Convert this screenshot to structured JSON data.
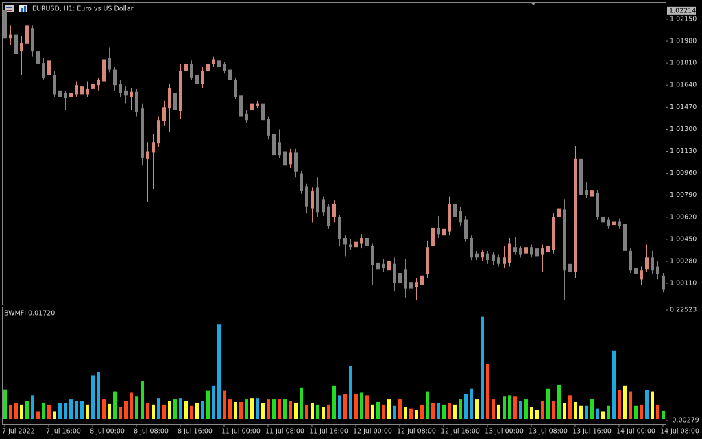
{
  "chart_data": [
    {
      "type": "candlestick",
      "title": "EURUSD, H1:  Euro vs US Dollar",
      "categories": [
        "7 Jul 2022",
        null,
        null,
        null,
        null,
        null,
        null,
        null,
        "7 Jul 16:00",
        null,
        null,
        null,
        null,
        null,
        null,
        null,
        "8 Jul 00:00",
        null,
        null,
        null,
        null,
        null,
        null,
        null,
        "8 Jul 08:00",
        null,
        null,
        null,
        null,
        null,
        null,
        null,
        "8 Jul 16:00",
        null,
        null,
        null,
        null,
        null,
        null,
        null,
        "11 Jul 00:00",
        null,
        null,
        null,
        null,
        null,
        null,
        null,
        "11 Jul 08:00",
        null,
        null,
        null,
        null,
        null,
        null,
        null,
        "11 Jul 16:00",
        null,
        null,
        null,
        null,
        null,
        null,
        null,
        "12 Jul 00:00",
        null,
        null,
        null,
        null,
        null,
        null,
        null,
        "12 Jul 08:00",
        null,
        null,
        null,
        null,
        null,
        null,
        null,
        "12 Jul 16:00",
        null,
        null,
        null,
        null,
        null,
        null,
        null,
        "13 Jul 00:00",
        null,
        null,
        null,
        null,
        null,
        null,
        null,
        "13 Jul 08:00",
        null,
        null,
        null,
        null,
        null,
        null,
        null,
        "13 Jul 16:00",
        null,
        null,
        null,
        null,
        null,
        null,
        null,
        "14 Jul 00:00",
        null,
        null,
        null,
        null,
        null,
        null,
        null,
        "14 Jul 08:00"
      ],
      "open": [
        1.0222,
        1.02,
        1.0203,
        1.019,
        1.0196,
        1.0208,
        1.019,
        1.0181,
        1.0172,
        1.0172,
        1.016,
        1.0158,
        1.0155,
        1.0157,
        1.0157,
        1.0157,
        1.0161,
        1.0164,
        1.0167,
        1.0185,
        1.0176,
        1.0165,
        1.016,
        1.0155,
        1.0159,
        1.0146,
        1.0107,
        1.0112,
        1.0119,
        1.0136,
        1.0146,
        1.0158,
        1.0144,
        1.0175,
        1.018,
        1.0172,
        1.0165,
        1.0175,
        1.018,
        1.0183,
        1.018,
        1.0176,
        1.0168,
        1.0156,
        1.0142,
        1.0145,
        1.0148,
        1.015,
        1.0138,
        1.0126,
        1.012,
        1.0113,
        1.0103,
        1.0112,
        1.0096,
        1.0086,
        1.0069,
        1.0085,
        1.0076,
        1.007,
        1.0062,
        1.0062,
        1.0046,
        1.0041,
        1.0039,
        1.0042,
        1.0046,
        1.004,
        1.0027,
        1.0026,
        1.0021,
        1.0026,
        1.0019,
        1.0022,
        1.0012,
        1.0008,
        1.001,
        1.0018,
        1.004,
        1.0054,
        1.0048,
        1.0051,
        1.0072,
        1.0067,
        1.006,
        1.0046,
        1.0034,
        1.0031,
        1.0034,
        1.0033,
        1.0031,
        1.0026,
        1.0027,
        1.0039,
        1.0038,
        1.0034,
        1.0039,
        1.0038,
        1.0033,
        1.0035,
        1.0037,
        1.0062,
        1.0068,
        1.0026,
        1.002,
        1.0107,
        1.0083,
        1.0078,
        1.0081,
        1.0062,
        1.006,
        1.0056,
        1.0059,
        1.0057,
        1.0036,
        1.0023,
        1.0014,
        1.0022,
        1.0031,
        1.0024,
        1.0017
      ],
      "high": [
        1.0226,
        1.021,
        1.0212,
        1.0202,
        1.0215,
        1.021,
        1.0192,
        1.0185,
        1.0186,
        1.0175,
        1.0165,
        1.016,
        1.0163,
        1.0167,
        1.0166,
        1.0167,
        1.0168,
        1.017,
        1.0188,
        1.0193,
        1.0178,
        1.0168,
        1.0163,
        1.0162,
        1.0161,
        1.015,
        1.012,
        1.0126,
        1.014,
        1.0152,
        1.0165,
        1.016,
        1.018,
        1.0195,
        1.0183,
        1.0175,
        1.0178,
        1.0182,
        1.0186,
        1.0185,
        1.0182,
        1.0178,
        1.017,
        1.0158,
        1.0145,
        1.0152,
        1.0152,
        1.0152,
        1.014,
        1.0128,
        1.013,
        1.0115,
        1.0115,
        1.0115,
        1.0098,
        1.0088,
        1.0085,
        1.0093,
        1.0078,
        1.0072,
        1.0075,
        1.0064,
        1.0048,
        1.0045,
        1.0046,
        1.0049,
        1.0048,
        1.0042,
        1.0029,
        1.003,
        1.0031,
        1.0031,
        1.0035,
        1.003,
        1.0018,
        1.0015,
        1.002,
        1.0044,
        1.0062,
        1.0063,
        1.0055,
        1.0078,
        1.0075,
        1.007,
        1.0063,
        1.0048,
        1.0036,
        1.0037,
        1.0036,
        1.0035,
        1.0033,
        1.004,
        1.0046,
        1.0047,
        1.004,
        1.0048,
        1.0041,
        1.0045,
        1.0041,
        1.0046,
        1.0065,
        1.0072,
        1.0076,
        1.0028,
        1.0117,
        1.0109,
        1.0089,
        1.0085,
        1.0083,
        1.0064,
        1.0062,
        1.0061,
        1.0061,
        1.0059,
        1.0038,
        1.0025,
        1.0024,
        1.0041,
        1.0036,
        1.0028,
        1.0019
      ],
      "low": [
        1.0196,
        1.0195,
        1.0185,
        1.0172,
        1.0194,
        1.0186,
        1.0175,
        1.0168,
        1.017,
        1.0155,
        1.015,
        1.0145,
        1.0152,
        1.0155,
        1.0155,
        1.0155,
        1.0158,
        1.016,
        1.0165,
        1.0174,
        1.016,
        1.0155,
        1.015,
        1.0145,
        1.014,
        1.0102,
        1.0074,
        1.0084,
        1.0116,
        1.0133,
        1.0128,
        1.014,
        1.0138,
        1.0173,
        1.0168,
        1.0163,
        1.0162,
        1.0173,
        1.0178,
        1.0176,
        1.0173,
        1.0166,
        1.0153,
        1.0138,
        1.0135,
        1.0143,
        1.0146,
        1.0135,
        1.0122,
        1.0108,
        1.0108,
        1.01,
        1.01,
        1.0093,
        1.008,
        1.0065,
        1.0058,
        1.0062,
        1.0063,
        1.0053,
        1.0058,
        1.004,
        1.0032,
        1.0037,
        1.0037,
        1.0038,
        1.0037,
        1.001,
        1.0005,
        1.002,
        1.0015,
        1.0005,
        1.0008,
        1.0,
        1.0,
        0.9998,
        1.0006,
        1.0015,
        1.0036,
        1.0046,
        1.0045,
        1.0048,
        1.006,
        1.0055,
        1.0043,
        1.0029,
        1.0029,
        1.0028,
        1.0026,
        1.0025,
        1.0024,
        1.0023,
        1.0024,
        1.0033,
        1.0031,
        1.0031,
        1.0031,
        1.0009,
        1.002,
        1.0032,
        1.0034,
        1.0056,
        0.9998,
        1.0005,
        1.0015,
        1.0076,
        1.0077,
        1.0076,
        1.006,
        1.0056,
        1.0053,
        1.0054,
        1.0053,
        1.0034,
        1.0019,
        1.001,
        1.001,
        1.002,
        1.0018,
        1.0014,
        1.0004
      ],
      "close": [
        1.02,
        1.0203,
        1.0188,
        1.0197,
        1.021,
        1.019,
        1.018,
        1.017,
        1.0183,
        1.0157,
        1.0155,
        1.0154,
        1.0158,
        1.0164,
        1.0163,
        1.0161,
        1.0165,
        1.0168,
        1.0184,
        1.0176,
        1.0164,
        1.0158,
        1.0156,
        1.0159,
        1.0143,
        1.0108,
        1.0113,
        1.012,
        1.0137,
        1.0147,
        1.0162,
        1.0145,
        1.0175,
        1.018,
        1.017,
        1.0165,
        1.0175,
        1.018,
        1.0184,
        1.0178,
        1.0175,
        1.0168,
        1.0155,
        1.014,
        1.0137,
        1.015,
        1.015,
        1.0137,
        1.0125,
        1.011,
        1.011,
        1.0102,
        1.0112,
        1.0097,
        1.0082,
        1.007,
        1.0082,
        1.0066,
        1.0066,
        1.0055,
        1.0072,
        1.0045,
        1.0041,
        1.0039,
        1.0043,
        1.0046,
        1.004,
        1.0025,
        1.0022,
        1.0023,
        1.0028,
        1.0011,
        1.0011,
        1.0007,
        1.0007,
        1.0012,
        1.0017,
        1.0039,
        1.0054,
        1.0049,
        1.0053,
        1.0072,
        1.0062,
        1.0058,
        1.0045,
        1.0031,
        1.0031,
        1.0035,
        1.0029,
        1.0028,
        1.0026,
        1.0031,
        1.0042,
        1.0035,
        1.0033,
        1.0039,
        1.0033,
        1.0032,
        1.0038,
        1.004,
        1.0062,
        1.0069,
        1.0021,
        1.002,
        1.0107,
        1.0079,
        1.0079,
        1.0083,
        1.0062,
        1.0058,
        1.0055,
        1.0059,
        1.0055,
        1.0036,
        1.0021,
        1.0018,
        1.0021,
        1.0031,
        1.0021,
        1.0018,
        1.0006
      ],
      "bull_color": "#d9877b",
      "bear_color": "#808080",
      "ylim": [
        0.99941,
        1.02282
      ],
      "yticks": [
        {
          "value": 1.0215,
          "label": "1.02150"
        },
        {
          "value": 1.0198,
          "label": "1.01980"
        },
        {
          "value": 1.0181,
          "label": "1.01810"
        },
        {
          "value": 1.0164,
          "label": "1.01640"
        },
        {
          "value": 1.0147,
          "label": "1.01470"
        },
        {
          "value": 1.013,
          "label": "1.01300"
        },
        {
          "value": 1.0113,
          "label": "1.01130"
        },
        {
          "value": 1.0096,
          "label": "1.00960"
        },
        {
          "value": 1.0079,
          "label": "1.00790"
        },
        {
          "value": 1.0062,
          "label": "1.00620"
        },
        {
          "value": 1.0045,
          "label": "1.00450"
        },
        {
          "value": 1.0028,
          "label": "1.00280"
        },
        {
          "value": 1.0011,
          "label": "1.00110"
        }
      ],
      "price_marker": 1.02214
    },
    {
      "type": "bar",
      "title": "BWMFI 0.01720",
      "values": [
        0.0614,
        0.03,
        0.0328,
        0.03,
        0.0382,
        0.0491,
        0.0164,
        0.0328,
        0.03,
        0.0164,
        0.0328,
        0.0328,
        0.041,
        0.0382,
        0.0382,
        0.03,
        0.0901,
        0.0969,
        0.041,
        0.0314,
        0.0573,
        0.0246,
        0.0382,
        0.0546,
        0.0464,
        0.0792,
        0.0341,
        0.03,
        0.0437,
        0.03,
        0.0382,
        0.041,
        0.0437,
        0.0382,
        0.0273,
        0.0341,
        0.0382,
        0.0587,
        0.0683,
        0.1952,
        0.0587,
        0.041,
        0.0355,
        0.0355,
        0.041,
        0.0437,
        0.0437,
        0.0328,
        0.041,
        0.041,
        0.041,
        0.041,
        0.0382,
        0.0341,
        0.0655,
        0.03,
        0.0328,
        0.03,
        0.0246,
        0.03,
        0.0683,
        0.0491,
        0.0519,
        0.1092,
        0.0519,
        0.0546,
        0.0491,
        0.03,
        0.0355,
        0.03,
        0.041,
        0.0273,
        0.041,
        0.0246,
        0.0218,
        0.0191,
        0.03,
        0.0573,
        0.0328,
        0.0328,
        0.03,
        0.0328,
        0.03,
        0.041,
        0.0519,
        0.0628,
        0.041,
        0.2116,
        0.1147,
        0.041,
        0.03,
        0.0464,
        0.0491,
        0.0464,
        0.0382,
        0.041,
        0.0246,
        0.0191,
        0.0382,
        0.0628,
        0.0382,
        0.071,
        0.0328,
        0.0491,
        0.0355,
        0.0273,
        0.0273,
        0.041,
        0.0218,
        0.0164,
        0.0273,
        0.142,
        0.0601,
        0.0683,
        0.0573,
        0.0273,
        0.03,
        0.0601,
        0.0573,
        0.03,
        0.0172
      ],
      "colors": [
        "#22dd22",
        "#ff4a1a",
        "#ff4a1a",
        "#ffff30",
        "#22dd22",
        "#1ea8e0",
        "#ff4a1a",
        "#22dd22",
        "#ff4a1a",
        "#ffff30",
        "#1ea8e0",
        "#1ea8e0",
        "#1ea8e0",
        "#1ea8e0",
        "#1ea8e0",
        "#ffff30",
        "#1ea8e0",
        "#1ea8e0",
        "#ff4a1a",
        "#ffff30",
        "#22dd22",
        "#ff4a1a",
        "#ff4a1a",
        "#ff4a1a",
        "#22dd22",
        "#22dd22",
        "#ff4a1a",
        "#ffff30",
        "#1ea8e0",
        "#ff4a1a",
        "#ffff30",
        "#22dd22",
        "#1ea8e0",
        "#ffff30",
        "#ff4a1a",
        "#ffff30",
        "#1ea8e0",
        "#22dd22",
        "#1ea8e0",
        "#1ea8e0",
        "#ff4a1a",
        "#ff4a1a",
        "#ffff30",
        "#ff4a1a",
        "#22dd22",
        "#ffff30",
        "#1ea8e0",
        "#ffff30",
        "#ff4a1a",
        "#22dd22",
        "#ff4a1a",
        "#22dd22",
        "#ff4a1a",
        "#ffff30",
        "#22dd22",
        "#ff4a1a",
        "#ffff30",
        "#22dd22",
        "#ffff30",
        "#ff4a1a",
        "#22dd22",
        "#1ea8e0",
        "#ff4a1a",
        "#1ea8e0",
        "#ff4a1a",
        "#22dd22",
        "#ff4a1a",
        "#ffff30",
        "#22dd22",
        "#ff4a1a",
        "#ffff30",
        "#1ea8e0",
        "#ff4a1a",
        "#ffff30",
        "#ff4a1a",
        "#ffff30",
        "#ff4a1a",
        "#22dd22",
        "#ff4a1a",
        "#1ea8e0",
        "#22dd22",
        "#ff4a1a",
        "#ffff30",
        "#22dd22",
        "#1ea8e0",
        "#1ea8e0",
        "#ffff30",
        "#1ea8e0",
        "#ff4a1a",
        "#ff4a1a",
        "#ffff30",
        "#22dd22",
        "#22dd22",
        "#ff4a1a",
        "#1ea8e0",
        "#22dd22",
        "#ffff30",
        "#ffff30",
        "#ff4a1a",
        "#22dd22",
        "#ff4a1a",
        "#22dd22",
        "#ffff30",
        "#ff4a1a",
        "#ffff30",
        "#ffff30",
        "#1ea8e0",
        "#22dd22",
        "#1ea8e0",
        "#ffff30",
        "#22dd22",
        "#1ea8e0",
        "#ff4a1a",
        "#ffff30",
        "#ff4a1a",
        "#22dd22",
        "#ff4a1a",
        "#1ea8e0",
        "#ffff30",
        "#ff4a1a",
        "#22dd22"
      ],
      "ylim": [
        -0.0113,
        0.2309
      ],
      "yticks": [
        0.22523,
        -0.00279
      ]
    }
  ]
}
